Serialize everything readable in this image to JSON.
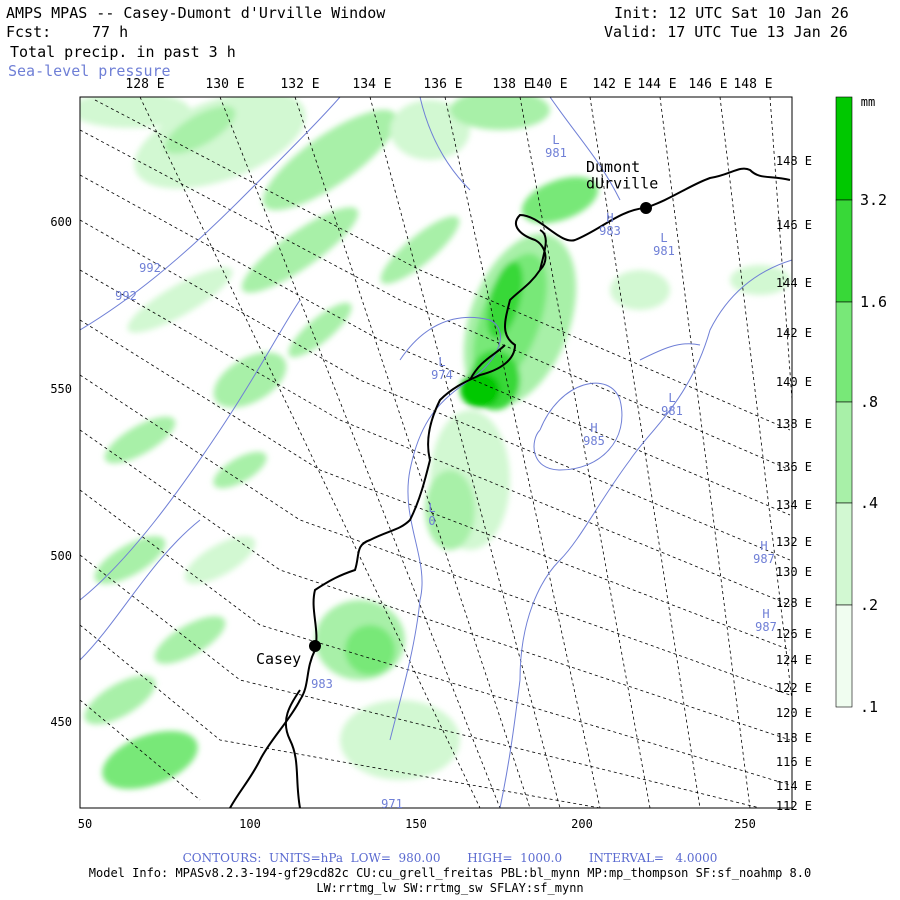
{
  "header": {
    "title": "AMPS MPAS -- Casey-Dumont d'Urville Window",
    "forecast_label": "Fcst:",
    "forecast_hours": "77 h",
    "field": "Total precip. in past 3 h",
    "contour_field": "Sea-level pressure",
    "init": "Init: 12 UTC Sat 10 Jan 26",
    "valid": "Valid: 17 UTC Tue 13 Jan 26"
  },
  "top_longitudes": [
    "128 E",
    "130 E",
    "132 E",
    "134 E",
    "136 E",
    "138 E",
    "140 E",
    "142 E",
    "144 E",
    "146 E",
    "148 E"
  ],
  "right_longitudes": [
    "148 E",
    "146 E",
    "144 E",
    "142 E",
    "140 E",
    "138 E",
    "136 E",
    "134 E",
    "132 E",
    "130 E",
    "128 E",
    "126 E",
    "124 E",
    "122 E",
    "120 E",
    "118 E",
    "116 E",
    "114 E",
    "112 E"
  ],
  "x_axis": {
    "ticks": [
      "50",
      "100",
      "150",
      "200",
      "250"
    ]
  },
  "y_axis": {
    "ticks": [
      "600",
      "550",
      "500",
      "450"
    ]
  },
  "colorbar": {
    "unit": "mm",
    "labels": [
      "3.2",
      "1.6",
      ".8",
      ".4",
      ".2",
      ".1"
    ],
    "colors": [
      "#00c800",
      "#38d838",
      "#78e878",
      "#a8f0a8",
      "#d2f8d2",
      "#f0fdf0"
    ]
  },
  "stations": [
    {
      "name": "Casey"
    },
    {
      "name": "Dumont\ndUrville"
    }
  ],
  "pressure_labels": [
    {
      "text": "L\n981"
    },
    {
      "text": "H\n983"
    },
    {
      "text": "L\n981"
    },
    {
      "text": "992"
    },
    {
      "text": "992"
    },
    {
      "text": "L\n974"
    },
    {
      "text": "L\n981"
    },
    {
      "text": "H\n985"
    },
    {
      "text": "H\n987"
    },
    {
      "text": "H\n987"
    },
    {
      "text": "L\n0"
    },
    {
      "text": "983"
    },
    {
      "text": "971"
    }
  ],
  "footer": {
    "contours": "CONTOURS:  UNITS=hPa  LOW=  980.00       HIGH=  1000.0       INTERVAL=   4.0000",
    "model_info": "Model Info: MPASv8.2.3-194-gf29cd82c CU:cu_grell_freitas PBL:bl_mynn MP:mp_thompson SF:sf_noahmp 8.0",
    "model_info2": "LW:rrtmg_lw SW:rrtmg_sw SFLAY:sf_mynn"
  }
}
